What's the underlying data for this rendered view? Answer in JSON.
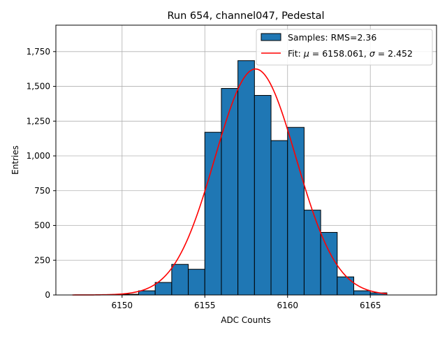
{
  "chart_data": {
    "type": "bar",
    "title": "Run 654, channel047, Pedestal",
    "xlabel": "ADC Counts",
    "ylabel": "Entries",
    "xlim": [
      6146.0,
      6169.0
    ],
    "ylim": [
      0,
      1940
    ],
    "x_ticks": [
      6150,
      6155,
      6160,
      6165
    ],
    "y_ticks": [
      0,
      250,
      500,
      750,
      1000,
      1250,
      1500,
      1750
    ],
    "grid": true,
    "legend_position": "top-right",
    "bar_color": "#1f77b4",
    "fit_color": "#ff0000",
    "histogram": {
      "name": "Samples: RMS=2.36",
      "bin_width": 1,
      "bin_starts": [
        6150,
        6151,
        6152,
        6153,
        6154,
        6155,
        6156,
        6157,
        6158,
        6159,
        6160,
        6161,
        6162,
        6163,
        6164,
        6165
      ],
      "values": [
        5,
        30,
        90,
        220,
        185,
        1170,
        1485,
        1685,
        1435,
        1110,
        1205,
        610,
        450,
        130,
        30,
        15
      ]
    },
    "fit": {
      "name_prefix": "Fit: ",
      "mu_symbol": "μ",
      "mu_text": " = 6158.061, ",
      "sigma_symbol": "σ",
      "sigma_text": " = 2.452",
      "mu": 6158.061,
      "sigma": 2.452,
      "amplitude": 1625,
      "x_range": [
        6147,
        6166
      ]
    }
  }
}
